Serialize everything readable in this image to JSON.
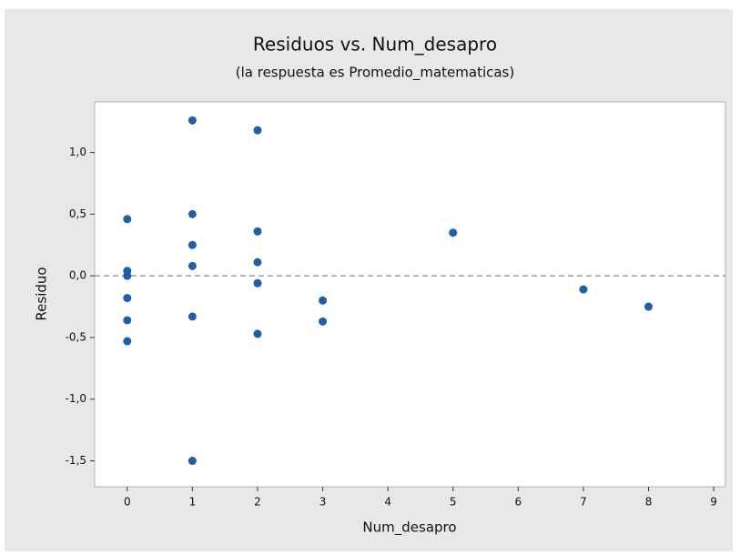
{
  "chart_data": {
    "type": "scatter",
    "title": "Residuos vs. Num_desapro",
    "subtitle": "(la respuesta es Promedio_matematicas)",
    "x_label": "Num_desapro",
    "y_label": "Residuo",
    "x": [
      0,
      0,
      0,
      0,
      0,
      0,
      1,
      1,
      1,
      1,
      1,
      1,
      2,
      2,
      2,
      2,
      2,
      3,
      3,
      5,
      7,
      8
    ],
    "values": [
      0.46,
      0.04,
      0.0,
      -0.18,
      -0.36,
      -0.53,
      1.26,
      0.5,
      0.25,
      0.08,
      -0.33,
      -1.5,
      1.18,
      0.36,
      0.11,
      -0.06,
      -0.47,
      -0.2,
      -0.37,
      0.35,
      -0.11,
      -0.25
    ],
    "color": "#1f5fa8",
    "reference_line": 0,
    "xlim": [
      -0.5,
      9.18
    ],
    "ylim": [
      -1.71,
      1.41
    ],
    "xticks": [
      0,
      1,
      2,
      3,
      4,
      5,
      6,
      7,
      8,
      9
    ],
    "yticks": [
      {
        "value": -1.5,
        "label": "-1,5"
      },
      {
        "value": -1.0,
        "label": "-1,0"
      },
      {
        "value": -0.5,
        "label": "-0,5"
      },
      {
        "value": 0,
        "label": "0,0"
      },
      {
        "value": 0.5,
        "label": "0,5"
      },
      {
        "value": 1.0,
        "label": "1,0"
      }
    ]
  }
}
